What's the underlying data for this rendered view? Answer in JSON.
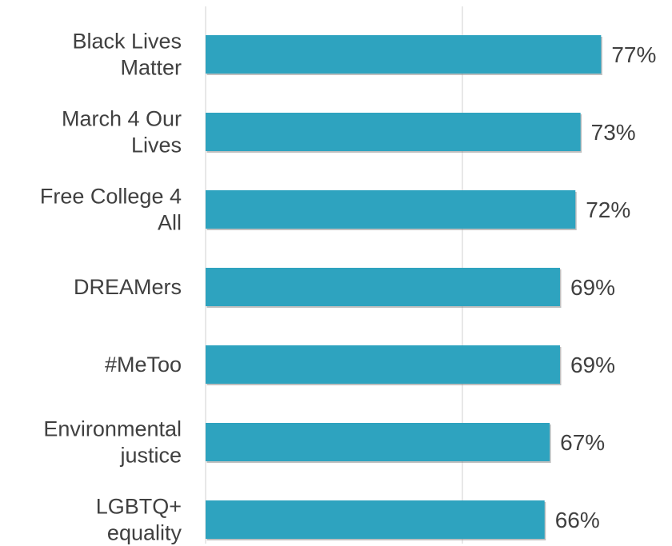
{
  "chart_data": {
    "type": "bar",
    "orientation": "horizontal",
    "categories": [
      [
        "Black Lives",
        "Matter"
      ],
      [
        "March 4 Our",
        "Lives"
      ],
      [
        "Free College 4",
        "All"
      ],
      [
        "DREAMers"
      ],
      [
        "#MeToo"
      ],
      [
        "Environmental",
        "justice"
      ],
      [
        "LGBTQ+",
        "equality"
      ]
    ],
    "values": [
      77,
      73,
      72,
      69,
      69,
      67,
      66
    ],
    "value_labels": [
      "77%",
      "73%",
      "72%",
      "69%",
      "69%",
      "67%",
      "66%"
    ],
    "xlim": [
      0,
      100
    ],
    "gridlines": [
      0,
      50
    ],
    "grid": true,
    "legend": "none",
    "bar_color": "#2EA3BF",
    "bar_shadow_color": "#8A8A8A",
    "grid_color": "#D9D9D9",
    "text_color": "#404040"
  }
}
